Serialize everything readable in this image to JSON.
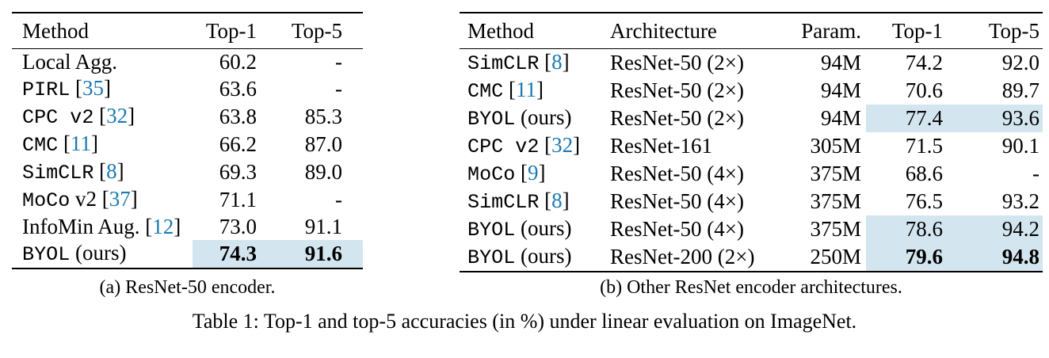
{
  "colors": {
    "background": "#ffffff",
    "text": "#000000",
    "citation_blue": "#1b79b2",
    "highlight_blue": "#d3e5ef"
  },
  "figure_caption": "Table 1: Top-1 and top-5 accuracies (in %) under linear evaluation on ImageNet.",
  "table_a": {
    "caption": "(a) ResNet-50 encoder.",
    "headers": [
      "Method",
      "Top-1",
      "Top-5"
    ],
    "rows": [
      {
        "method": [
          {
            "t": "Local Agg.",
            "s": "serif"
          }
        ],
        "top1": "60.2",
        "top5": "-",
        "highlight": false,
        "bold": false
      },
      {
        "method": [
          {
            "t": "PIRL",
            "s": "mono"
          },
          {
            "t": " [",
            "s": "serif"
          },
          {
            "t": "35",
            "s": "cite"
          },
          {
            "t": "]",
            "s": "serif"
          }
        ],
        "top1": "63.6",
        "top5": "-",
        "highlight": false,
        "bold": false
      },
      {
        "method": [
          {
            "t": "CPC v2",
            "s": "mono"
          },
          {
            "t": " [",
            "s": "serif"
          },
          {
            "t": "32",
            "s": "cite"
          },
          {
            "t": "]",
            "s": "serif"
          }
        ],
        "top1": "63.8",
        "top5": "85.3",
        "highlight": false,
        "bold": false
      },
      {
        "method": [
          {
            "t": "CMC",
            "s": "mono"
          },
          {
            "t": " [",
            "s": "serif"
          },
          {
            "t": "11",
            "s": "cite"
          },
          {
            "t": "]",
            "s": "serif"
          }
        ],
        "top1": "66.2",
        "top5": "87.0",
        "highlight": false,
        "bold": false
      },
      {
        "method": [
          {
            "t": "SimCLR",
            "s": "mono"
          },
          {
            "t": " [",
            "s": "serif"
          },
          {
            "t": "8",
            "s": "cite"
          },
          {
            "t": "]",
            "s": "serif"
          }
        ],
        "top1": "69.3",
        "top5": "89.0",
        "highlight": false,
        "bold": false
      },
      {
        "method": [
          {
            "t": "MoCo",
            "s": "mono"
          },
          {
            "t": " v2 [",
            "s": "serif"
          },
          {
            "t": "37",
            "s": "cite"
          },
          {
            "t": "]",
            "s": "serif"
          }
        ],
        "top1": "71.1",
        "top5": "-",
        "highlight": false,
        "bold": false
      },
      {
        "method": [
          {
            "t": "InfoMin Aug. [",
            "s": "serif"
          },
          {
            "t": "12",
            "s": "cite"
          },
          {
            "t": "]",
            "s": "serif"
          }
        ],
        "top1": "73.0",
        "top5": "91.1",
        "highlight": false,
        "bold": false
      },
      {
        "method": [
          {
            "t": "BYOL",
            "s": "mono"
          },
          {
            "t": " (ours)",
            "s": "serif"
          }
        ],
        "top1": "74.3",
        "top5": "91.6",
        "highlight": true,
        "bold": true
      }
    ]
  },
  "table_b": {
    "caption": "(b) Other ResNet encoder architectures.",
    "headers": [
      "Method",
      "Architecture",
      "Param.",
      "Top-1",
      "Top-5"
    ],
    "rows": [
      {
        "method": [
          {
            "t": "SimCLR",
            "s": "mono"
          },
          {
            "t": " [",
            "s": "serif"
          },
          {
            "t": "8",
            "s": "cite"
          },
          {
            "t": "]",
            "s": "serif"
          }
        ],
        "arch": "ResNet-50 (2×)",
        "param": "94M",
        "top1": "74.2",
        "top5": "92.0",
        "highlight": false,
        "bold": false
      },
      {
        "method": [
          {
            "t": "CMC",
            "s": "mono"
          },
          {
            "t": " [",
            "s": "serif"
          },
          {
            "t": "11",
            "s": "cite"
          },
          {
            "t": "]",
            "s": "serif"
          }
        ],
        "arch": "ResNet-50 (2×)",
        "param": "94M",
        "top1": "70.6",
        "top5": "89.7",
        "highlight": false,
        "bold": false
      },
      {
        "method": [
          {
            "t": "BYOL",
            "s": "mono"
          },
          {
            "t": " (ours)",
            "s": "serif"
          }
        ],
        "arch": "ResNet-50 (2×)",
        "param": "94M",
        "top1": "77.4",
        "top5": "93.6",
        "highlight": true,
        "bold": false
      },
      {
        "method": [
          {
            "t": "CPC v2",
            "s": "mono"
          },
          {
            "t": " [",
            "s": "serif"
          },
          {
            "t": "32",
            "s": "cite"
          },
          {
            "t": "]",
            "s": "serif"
          }
        ],
        "arch": "ResNet-161",
        "param": "305M",
        "top1": "71.5",
        "top5": "90.1",
        "highlight": false,
        "bold": false
      },
      {
        "method": [
          {
            "t": "MoCo",
            "s": "mono"
          },
          {
            "t": " [",
            "s": "serif"
          },
          {
            "t": "9",
            "s": "cite"
          },
          {
            "t": "]",
            "s": "serif"
          }
        ],
        "arch": "ResNet-50 (4×)",
        "param": "375M",
        "top1": "68.6",
        "top5": "-",
        "highlight": false,
        "bold": false
      },
      {
        "method": [
          {
            "t": "SimCLR",
            "s": "mono"
          },
          {
            "t": " [",
            "s": "serif"
          },
          {
            "t": "8",
            "s": "cite"
          },
          {
            "t": "]",
            "s": "serif"
          }
        ],
        "arch": "ResNet-50 (4×)",
        "param": "375M",
        "top1": "76.5",
        "top5": "93.2",
        "highlight": false,
        "bold": false
      },
      {
        "method": [
          {
            "t": "BYOL",
            "s": "mono"
          },
          {
            "t": " (ours)",
            "s": "serif"
          }
        ],
        "arch": "ResNet-50 (4×)",
        "param": "375M",
        "top1": "78.6",
        "top5": "94.2",
        "highlight": true,
        "bold": false
      },
      {
        "method": [
          {
            "t": "BYOL",
            "s": "mono"
          },
          {
            "t": " (ours)",
            "s": "serif"
          }
        ],
        "arch": "ResNet-200 (2×)",
        "param": "250M",
        "top1": "79.6",
        "top5": "94.8",
        "highlight": true,
        "bold": true
      }
    ]
  }
}
